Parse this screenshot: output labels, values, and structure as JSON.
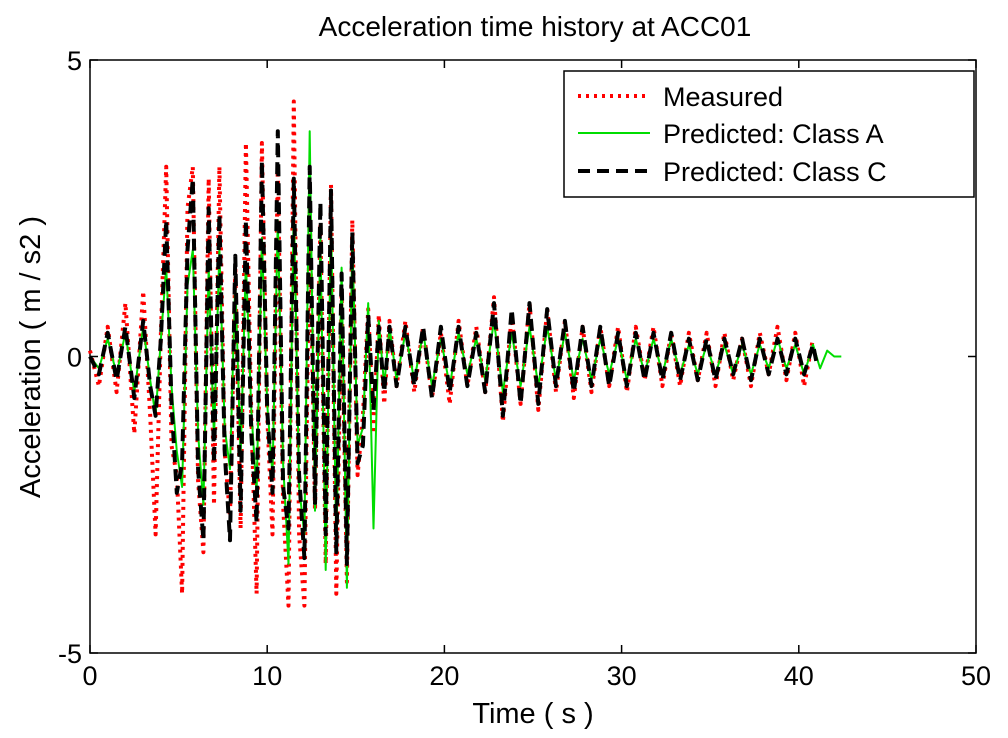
{
  "chart_data": {
    "type": "line",
    "title": "Acceleration time history at ACC01",
    "xlabel": "Time ( s )",
    "ylabel": "Acceleration ( m / s2 )",
    "xlim": [
      0,
      50
    ],
    "ylim": [
      -5,
      5
    ],
    "xticks": [
      "0",
      "10",
      "20",
      "30",
      "40",
      "50"
    ],
    "yticks": [
      "-5",
      "0",
      "5"
    ],
    "grid": false,
    "legend_position": "top-right",
    "legend": [
      "Measured",
      "Predicted: Class A",
      "Predicted: Class C"
    ],
    "series": [
      {
        "name": "Measured",
        "color": "#ff0000",
        "style": "dotted",
        "x": [
          0,
          0.5,
          1.0,
          1.5,
          2.0,
          2.5,
          3.0,
          3.4,
          3.7,
          4.0,
          4.3,
          4.6,
          4.9,
          5.2,
          5.5,
          5.8,
          6.1,
          6.4,
          6.7,
          7.0,
          7.3,
          7.6,
          7.9,
          8.2,
          8.5,
          8.8,
          9.1,
          9.4,
          9.7,
          10.0,
          10.3,
          10.6,
          10.9,
          11.2,
          11.5,
          11.8,
          12.1,
          12.4,
          12.7,
          13.0,
          13.3,
          13.6,
          13.9,
          14.2,
          14.5,
          14.8,
          15.1,
          15.4,
          15.7,
          16.0,
          16.3,
          16.6,
          16.9,
          17.3,
          17.8,
          18.3,
          18.8,
          19.3,
          19.8,
          20.3,
          20.8,
          21.3,
          21.8,
          22.3,
          22.8,
          23.3,
          23.8,
          24.3,
          24.8,
          25.3,
          25.8,
          26.3,
          26.8,
          27.3,
          27.8,
          28.3,
          28.8,
          29.3,
          29.8,
          30.3,
          30.8,
          31.3,
          31.8,
          32.3,
          32.8,
          33.3,
          33.8,
          34.3,
          34.8,
          35.3,
          35.8,
          36.3,
          36.8,
          37.3,
          37.8,
          38.3,
          38.8,
          39.3,
          39.8,
          40.3,
          40.8
        ],
        "y": [
          0.1,
          -0.5,
          0.5,
          -0.6,
          0.9,
          -1.3,
          1.1,
          -1.0,
          -3.0,
          0.4,
          3.2,
          -1.5,
          -2.0,
          -4.0,
          2.5,
          3.2,
          -2.1,
          -3.3,
          3.0,
          -2.5,
          3.2,
          -1.6,
          -2.7,
          1.5,
          -2.9,
          3.6,
          -1.0,
          -4.0,
          3.6,
          -1.0,
          -3.0,
          3.2,
          -2.5,
          -4.2,
          4.3,
          -3.0,
          -4.2,
          2.5,
          -2.6,
          2.2,
          -3.5,
          2.9,
          -4.0,
          1.1,
          -3.8,
          2.3,
          -2.0,
          -1.0,
          0.8,
          -1.3,
          0.7,
          -0.8,
          0.6,
          -0.5,
          0.6,
          -0.6,
          0.5,
          -0.7,
          0.4,
          -0.8,
          0.6,
          -0.5,
          0.5,
          -0.6,
          1.0,
          -1.1,
          0.7,
          -0.8,
          0.9,
          -0.9,
          0.8,
          -0.6,
          0.6,
          -0.7,
          0.5,
          -0.6,
          0.5,
          -0.5,
          0.5,
          -0.6,
          0.5,
          -0.4,
          0.5,
          -0.5,
          0.4,
          -0.5,
          0.4,
          -0.4,
          0.4,
          -0.5,
          0.4,
          -0.4,
          0.3,
          -0.5,
          0.4,
          -0.3,
          0.5,
          -0.4,
          0.4,
          -0.5,
          0.3
        ]
      },
      {
        "name": "Predicted: Class A",
        "color": "#00dd00",
        "style": "solid",
        "x": [
          0,
          0.5,
          1.0,
          1.5,
          2.0,
          2.5,
          3.0,
          3.4,
          3.7,
          4.0,
          4.3,
          4.6,
          4.9,
          5.2,
          5.5,
          5.8,
          6.1,
          6.4,
          6.7,
          7.0,
          7.3,
          7.6,
          7.9,
          8.2,
          8.5,
          8.8,
          9.1,
          9.4,
          9.7,
          10.0,
          10.3,
          10.6,
          10.9,
          11.2,
          11.5,
          11.8,
          12.1,
          12.4,
          12.7,
          13.0,
          13.3,
          13.6,
          13.9,
          14.2,
          14.5,
          14.8,
          15.1,
          15.4,
          15.7,
          16.0,
          16.3,
          16.6,
          16.9,
          17.3,
          17.8,
          18.3,
          18.8,
          19.3,
          19.8,
          20.3,
          20.8,
          21.3,
          21.8,
          22.3,
          22.8,
          23.3,
          23.8,
          24.3,
          24.8,
          25.3,
          25.8,
          26.3,
          26.8,
          27.3,
          27.8,
          28.3,
          28.8,
          29.3,
          29.8,
          30.3,
          30.8,
          31.3,
          31.8,
          32.3,
          32.8,
          33.3,
          33.8,
          34.3,
          34.8,
          35.3,
          35.8,
          36.3,
          36.8,
          37.3,
          37.8,
          38.3,
          38.8,
          39.3,
          39.8,
          40.3,
          40.8,
          41.2,
          41.6,
          42.0,
          42.4
        ],
        "y": [
          0.0,
          -0.2,
          0.3,
          -0.3,
          0.4,
          -0.6,
          0.5,
          -0.4,
          -1.0,
          0.3,
          1.5,
          -0.5,
          -1.6,
          -2.2,
          1.2,
          1.8,
          -1.3,
          -2.5,
          1.5,
          -1.4,
          1.8,
          -1.2,
          -1.9,
          1.3,
          -1.7,
          1.6,
          -0.9,
          -2.3,
          2.0,
          -0.8,
          -2.0,
          2.3,
          -1.8,
          -3.5,
          2.6,
          -2.2,
          -3.0,
          3.8,
          -2.6,
          2.0,
          -3.6,
          2.4,
          -3.2,
          1.5,
          -3.9,
          2.0,
          -1.5,
          -1.2,
          0.9,
          -2.9,
          0.6,
          -0.5,
          0.5,
          -0.4,
          0.4,
          -0.4,
          0.4,
          -0.5,
          0.3,
          -0.5,
          0.4,
          -0.3,
          0.3,
          -0.4,
          0.6,
          -0.6,
          0.4,
          -0.5,
          0.5,
          -0.5,
          0.5,
          -0.4,
          0.4,
          -0.4,
          0.3,
          -0.4,
          0.3,
          -0.3,
          0.3,
          -0.4,
          0.3,
          -0.3,
          0.3,
          -0.3,
          0.3,
          -0.3,
          0.2,
          -0.3,
          0.2,
          -0.3,
          0.2,
          -0.3,
          0.2,
          -0.3,
          0.2,
          -0.2,
          0.3,
          -0.2,
          0.2,
          -0.3,
          0.2,
          -0.2,
          0.1,
          0.0,
          0.0
        ]
      },
      {
        "name": "Predicted: Class C",
        "color": "#000000",
        "style": "dashed",
        "x": [
          0,
          0.5,
          1.0,
          1.5,
          2.0,
          2.5,
          3.0,
          3.4,
          3.7,
          4.0,
          4.3,
          4.6,
          4.9,
          5.2,
          5.5,
          5.8,
          6.1,
          6.4,
          6.7,
          7.0,
          7.3,
          7.6,
          7.9,
          8.2,
          8.5,
          8.8,
          9.1,
          9.4,
          9.7,
          10.0,
          10.3,
          10.6,
          10.9,
          11.2,
          11.5,
          11.8,
          12.1,
          12.4,
          12.7,
          13.0,
          13.3,
          13.6,
          13.9,
          14.2,
          14.5,
          14.8,
          15.1,
          15.4,
          15.7,
          16.0,
          16.3,
          16.6,
          16.9,
          17.3,
          17.8,
          18.3,
          18.8,
          19.3,
          19.8,
          20.3,
          20.8,
          21.3,
          21.8,
          22.3,
          22.8,
          23.3,
          23.8,
          24.3,
          24.8,
          25.3,
          25.8,
          26.3,
          26.8,
          27.3,
          27.8,
          28.3,
          28.8,
          29.3,
          29.8,
          30.3,
          30.8,
          31.3,
          31.8,
          32.3,
          32.8,
          33.3,
          33.8,
          34.3,
          34.8,
          35.3,
          35.8,
          36.3,
          36.8,
          37.3,
          37.8,
          38.3,
          38.8,
          39.3,
          39.8,
          40.3,
          40.8,
          41.0
        ],
        "y": [
          0.0,
          -0.3,
          0.4,
          -0.4,
          0.5,
          -0.7,
          0.6,
          -0.5,
          -1.0,
          0.3,
          2.3,
          -0.8,
          -2.3,
          -1.8,
          1.8,
          3.0,
          -1.9,
          -3.1,
          2.5,
          -1.8,
          2.4,
          -1.6,
          -3.1,
          1.7,
          -2.6,
          2.3,
          -1.3,
          -2.8,
          3.3,
          -0.9,
          -2.3,
          3.8,
          -2.2,
          -2.9,
          3.0,
          -2.0,
          -3.4,
          3.2,
          -2.5,
          2.6,
          -3.0,
          2.8,
          -3.3,
          1.4,
          -3.5,
          2.1,
          -1.8,
          -1.5,
          0.7,
          -0.9,
          0.5,
          -0.6,
          0.5,
          -0.5,
          0.5,
          -0.5,
          0.5,
          -0.7,
          0.5,
          -0.6,
          0.5,
          -0.5,
          0.4,
          -0.6,
          0.9,
          -1.0,
          0.8,
          -0.8,
          0.9,
          -0.8,
          0.8,
          -0.5,
          0.6,
          -0.6,
          0.5,
          -0.5,
          0.5,
          -0.5,
          0.4,
          -0.5,
          0.4,
          -0.4,
          0.4,
          -0.4,
          0.4,
          -0.4,
          0.3,
          -0.4,
          0.3,
          -0.4,
          0.3,
          -0.3,
          0.3,
          -0.4,
          0.3,
          -0.3,
          0.3,
          -0.3,
          0.3,
          -0.3,
          0.2,
          -0.1
        ]
      }
    ]
  }
}
